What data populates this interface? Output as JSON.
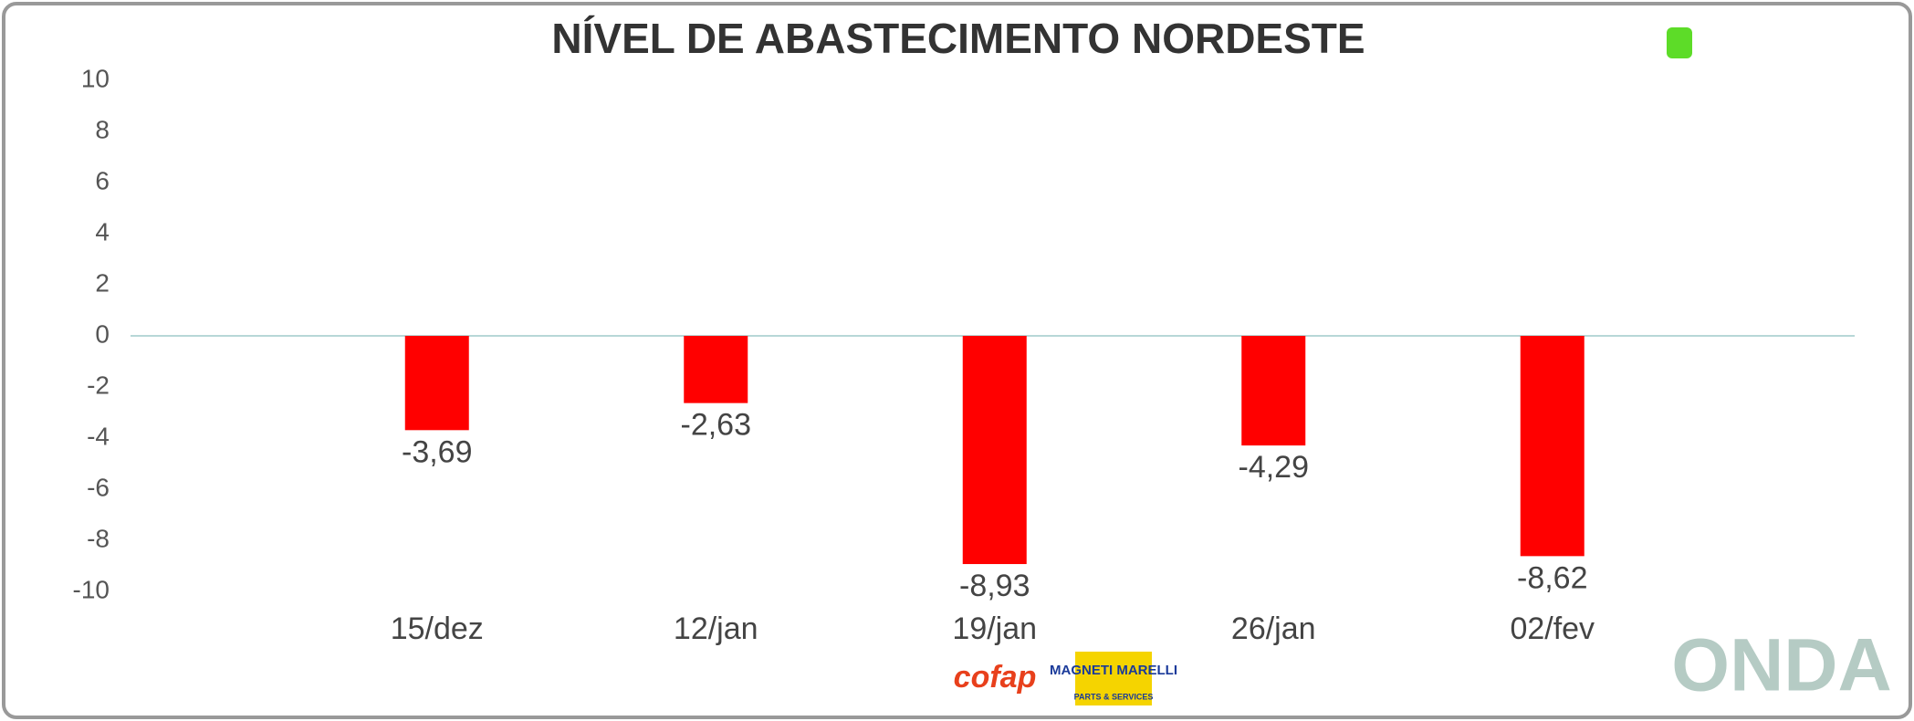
{
  "chart_data": {
    "type": "bar",
    "title": "NÍVEL DE ABASTECIMENTO NORDESTE",
    "categories": [
      "15/dez",
      "12/jan",
      "19/jan",
      "26/jan",
      "02/fev"
    ],
    "values": [
      -3.69,
      -2.63,
      -8.93,
      -4.29,
      -8.62
    ],
    "value_labels": [
      "-3,69",
      "-2,63",
      "-8,93",
      "-4,29",
      "-8,62"
    ],
    "color": "#ff0000",
    "ylim": [
      -10,
      10
    ],
    "yticks": [
      -10,
      -8,
      -6,
      -4,
      -2,
      0,
      2,
      4,
      6,
      8,
      10
    ],
    "grid": false
  },
  "logos": {
    "cofap": "cofap",
    "magneti": "MAGNETI MARELLI",
    "magneti_sub": "PARTS & SERVICES",
    "onda": "ONDA"
  }
}
